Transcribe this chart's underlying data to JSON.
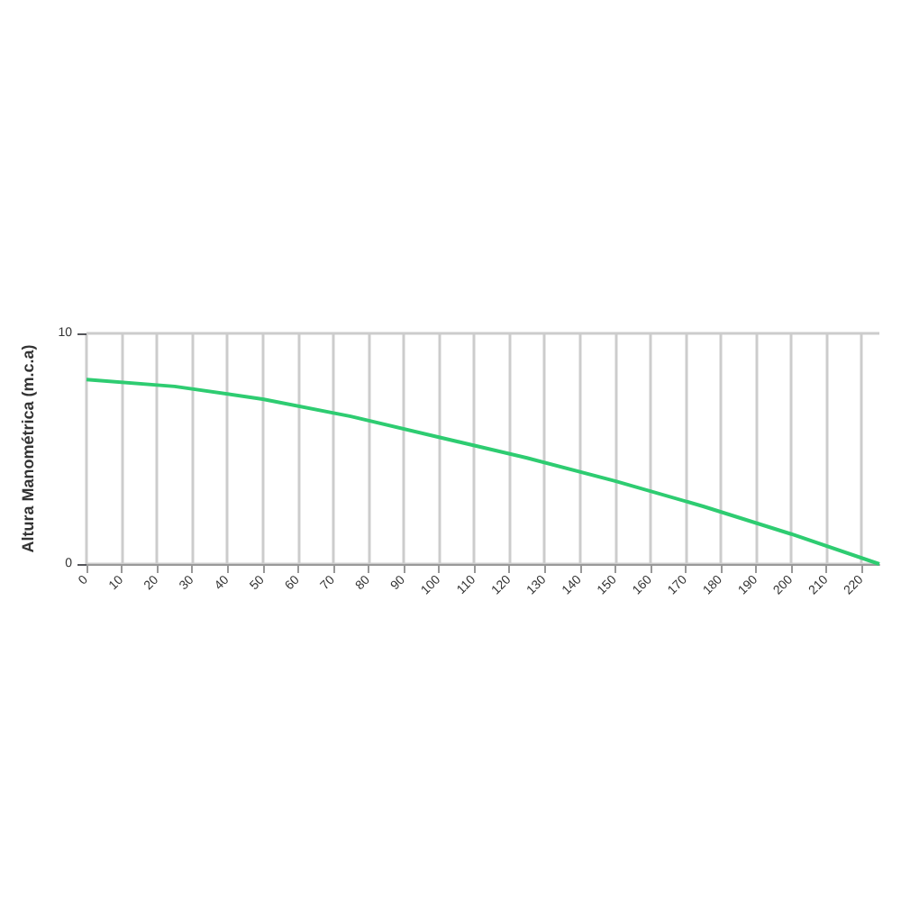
{
  "chart_data": {
    "type": "line",
    "ylabel": "Altura Manométrica (m.c.a)",
    "x": [
      0,
      25,
      50,
      75,
      100,
      125,
      150,
      175,
      200,
      225
    ],
    "series": [
      {
        "color": "#2ecc71",
        "values": [
          8,
          7.7,
          7.15,
          6.4,
          5.5,
          4.6,
          3.6,
          2.5,
          1.3,
          0
        ]
      }
    ],
    "xlim": [
      0,
      225
    ],
    "xticks": [
      0,
      10,
      20,
      30,
      40,
      50,
      60,
      70,
      80,
      90,
      100,
      110,
      120,
      130,
      140,
      150,
      160,
      170,
      180,
      190,
      200,
      210,
      220
    ],
    "ylim": [
      0,
      10
    ],
    "yticks": [
      0,
      10
    ],
    "grid": true,
    "marker": "none"
  }
}
